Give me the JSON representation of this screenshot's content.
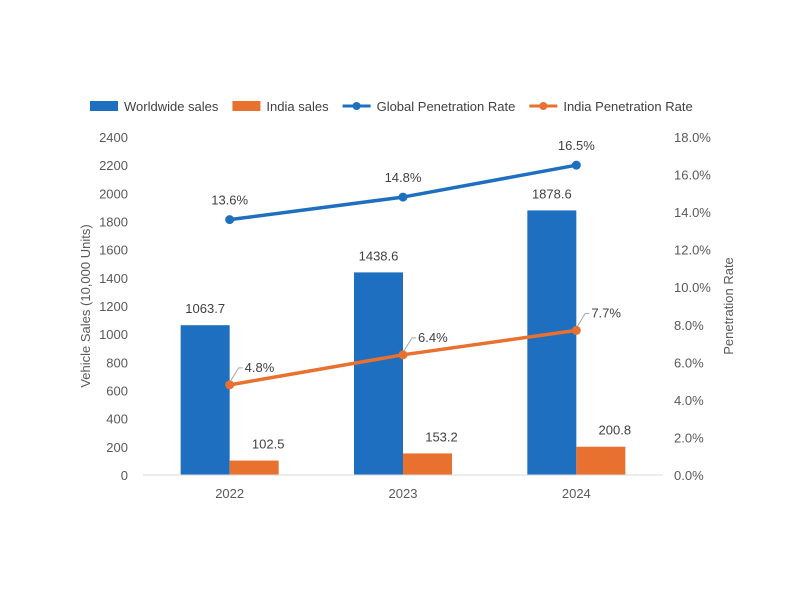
{
  "chart_data": {
    "type": "bar",
    "categories": [
      "2022",
      "2023",
      "2024"
    ],
    "bar_series": [
      {
        "name": "Worldwide sales",
        "values": [
          1063.7,
          1438.6,
          1878.6
        ],
        "labels": [
          "1063.7",
          "1438.6",
          "1878.6"
        ],
        "color": "#1F6FC0"
      },
      {
        "name": "India sales",
        "values": [
          102.5,
          153.2,
          200.8
        ],
        "labels": [
          "102.5",
          "153.2",
          "200.8"
        ],
        "color": "#E8712F"
      }
    ],
    "line_series": [
      {
        "name": "Global Penetration Rate",
        "values": [
          13.6,
          14.8,
          16.5
        ],
        "labels": [
          "13.6%",
          "14.8%",
          "16.5%"
        ],
        "color": "#1F6FC0"
      },
      {
        "name": "India Penetration Rate",
        "values": [
          4.8,
          6.4,
          7.7
        ],
        "labels": [
          "4.8%",
          "6.4%",
          "7.7%"
        ],
        "color": "#E8712F"
      }
    ],
    "ylabel": "Vehicle Sales (10,000 Units)",
    "y2label": "Penetration Rate",
    "ylim": [
      0,
      2400
    ],
    "y2lim": [
      0,
      18
    ],
    "yticks": [
      "0",
      "200",
      "400",
      "600",
      "800",
      "1000",
      "1200",
      "1400",
      "1600",
      "1800",
      "2000",
      "2200",
      "2400"
    ],
    "y2ticks": [
      "0.0%",
      "2.0%",
      "4.0%",
      "6.0%",
      "8.0%",
      "10.0%",
      "12.0%",
      "14.0%",
      "16.0%",
      "18.0%"
    ],
    "grid": false,
    "legend_position": "top"
  }
}
